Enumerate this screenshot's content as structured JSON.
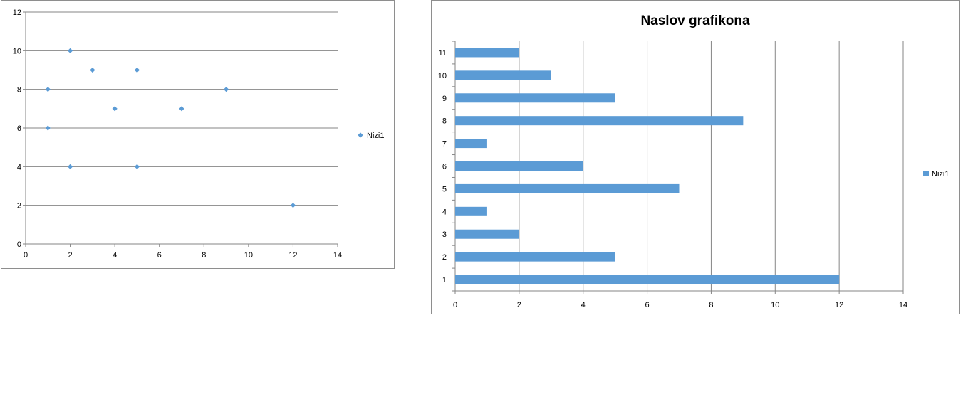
{
  "colors": {
    "series": "#5b9bd5",
    "grid": "#868686",
    "axis": "#868686"
  },
  "chart_data": [
    {
      "type": "scatter",
      "title": "",
      "xlabel": "",
      "ylabel": "",
      "xlim": [
        0,
        14
      ],
      "ylim": [
        0,
        12
      ],
      "x_ticks": [
        "0",
        "2",
        "4",
        "6",
        "8",
        "10",
        "12",
        "14"
      ],
      "y_ticks": [
        "0",
        "2",
        "4",
        "6",
        "8",
        "10",
        "12"
      ],
      "grid": "horizontal",
      "legend_position": "right",
      "series": [
        {
          "name": "Nizi1",
          "points": [
            {
              "x": 1,
              "y": 6
            },
            {
              "x": 1,
              "y": 8
            },
            {
              "x": 2,
              "y": 4
            },
            {
              "x": 2,
              "y": 10
            },
            {
              "x": 3,
              "y": 9
            },
            {
              "x": 4,
              "y": 7
            },
            {
              "x": 5,
              "y": 4
            },
            {
              "x": 5,
              "y": 9
            },
            {
              "x": 7,
              "y": 7
            },
            {
              "x": 9,
              "y": 8
            },
            {
              "x": 12,
              "y": 2
            }
          ]
        }
      ]
    },
    {
      "type": "bar",
      "orientation": "horizontal",
      "title": "Naslov grafikona",
      "xlabel": "",
      "ylabel": "",
      "xlim": [
        0,
        14
      ],
      "x_ticks": [
        "0",
        "2",
        "4",
        "6",
        "8",
        "10",
        "12",
        "14"
      ],
      "grid": "vertical",
      "legend_position": "right",
      "categories": [
        "1",
        "2",
        "3",
        "4",
        "5",
        "6",
        "7",
        "8",
        "9",
        "10",
        "11"
      ],
      "series": [
        {
          "name": "Nizi1",
          "values": [
            12,
            5,
            2,
            1,
            7,
            4,
            1,
            9,
            5,
            3,
            2
          ]
        }
      ]
    }
  ]
}
